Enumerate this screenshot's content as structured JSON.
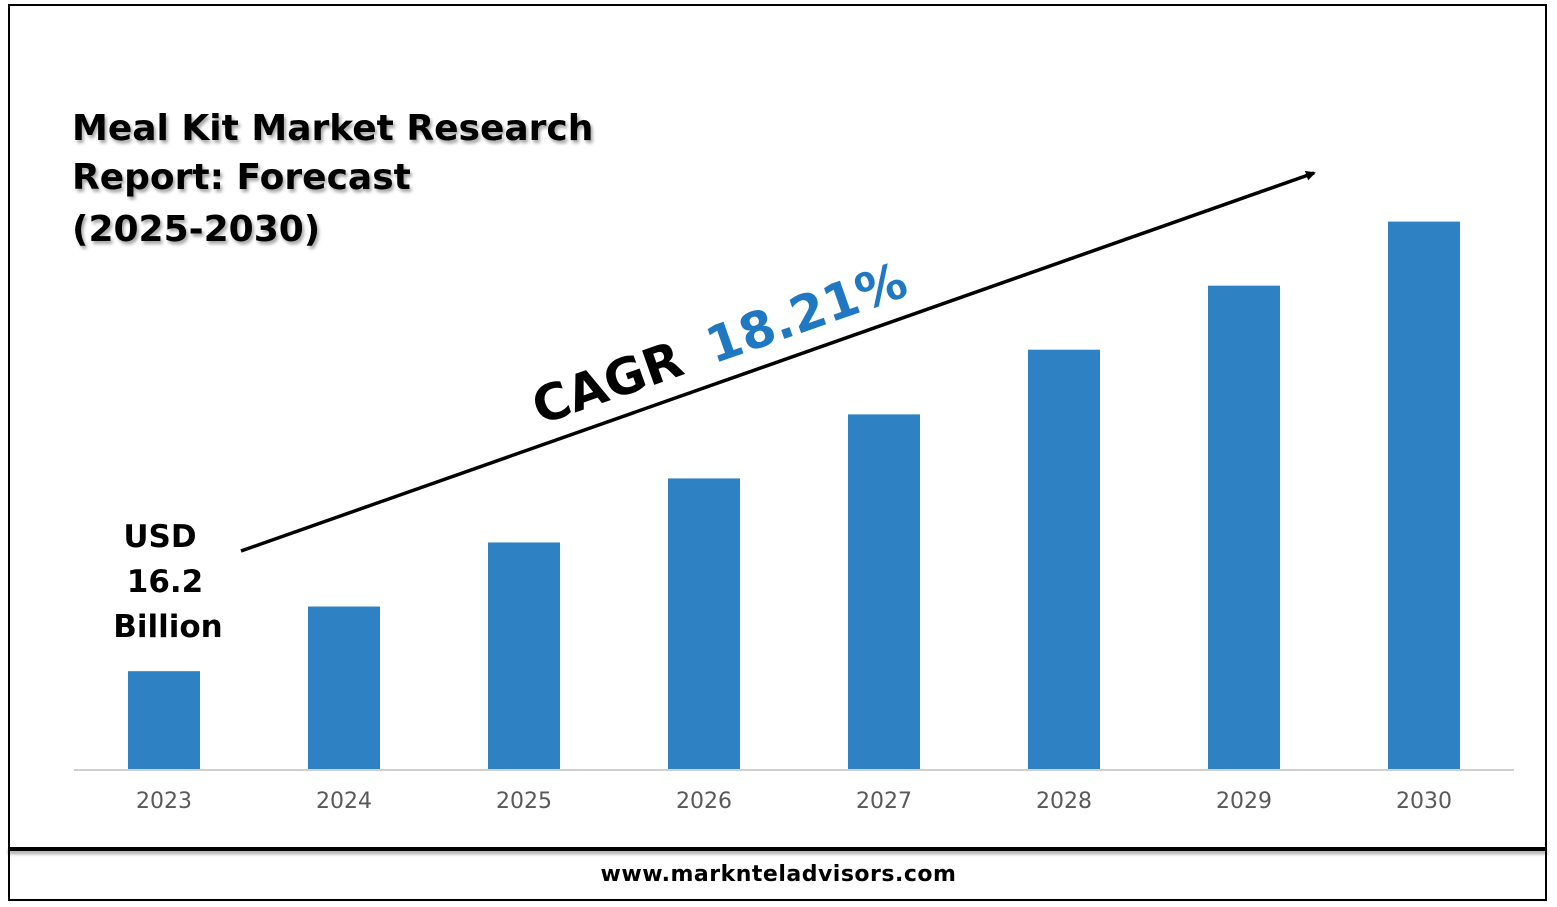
{
  "title_lines": [
    "Meal Kit Market Research",
    "Report: Forecast",
    "(2025-2030)"
  ],
  "start_value_lines": [
    "USD",
    "16.2",
    "Billion"
  ],
  "cagr": {
    "label": "CAGR",
    "value": "18.21%"
  },
  "footer": {
    "url": "www.marknteladvisors.com"
  },
  "colors": {
    "bar": "#2e81c2",
    "cagr_value": "#1f78c1",
    "axis": "#d0d0d0",
    "tick": "#595959"
  },
  "chart_data": {
    "type": "bar",
    "categories": [
      "2023",
      "2024",
      "2025",
      "2026",
      "2027",
      "2028",
      "2029",
      "2030"
    ],
    "values": [
      16.2,
      26.8,
      37.3,
      47.8,
      58.3,
      68.9,
      79.4,
      89.9
    ],
    "ylim": [
      0,
      100
    ],
    "grid": false,
    "legend": "none"
  }
}
